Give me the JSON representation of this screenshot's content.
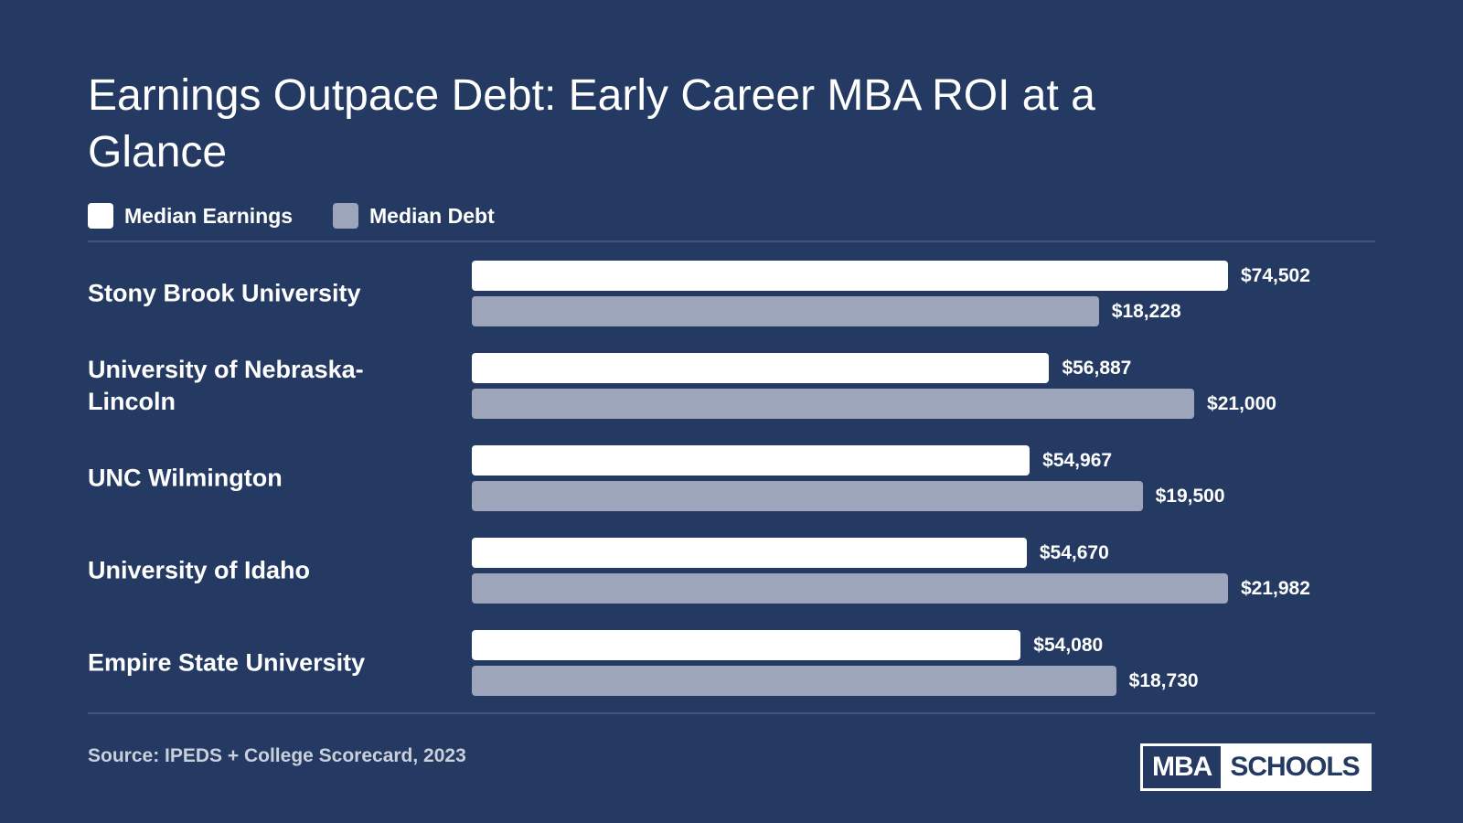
{
  "chart_data": {
    "type": "bar",
    "orientation": "horizontal",
    "title": "Earnings Outpace Debt: Early Career MBA ROI at a Glance",
    "categories": [
      "Stony Brook University",
      "University of Nebraska-Lincoln",
      "UNC Wilmington",
      "University of Idaho",
      "Empire State University"
    ],
    "series": [
      {
        "name": "Median Earnings",
        "color": "#ffffff",
        "values": [
          74502,
          56887,
          54967,
          54670,
          54080
        ],
        "value_labels": [
          "$74,502",
          "$56,887",
          "$54,967",
          "$54,670",
          "$54,080"
        ]
      },
      {
        "name": "Median Debt",
        "color": "#9ca5b9",
        "values": [
          18228,
          21000,
          19500,
          21982,
          18730
        ],
        "value_labels": [
          "$18,228",
          "$21,000",
          "$19,500",
          "$21,982",
          "$18,730"
        ]
      }
    ],
    "source": "Source: IPEDS + College Scorecard, 2023"
  },
  "logo": {
    "left": "MBA",
    "right": "SCHOOLS"
  }
}
